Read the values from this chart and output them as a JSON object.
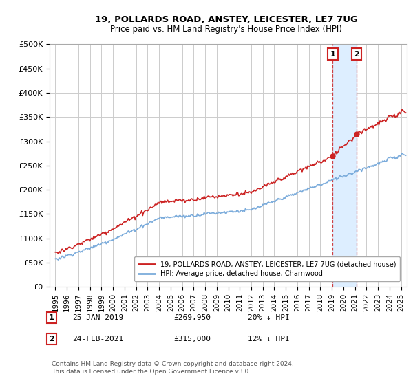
{
  "title": "19, POLLARDS ROAD, ANSTEY, LEICESTER, LE7 7UG",
  "subtitle": "Price paid vs. HM Land Registry's House Price Index (HPI)",
  "ylabel_ticks": [
    "£0",
    "£50K",
    "£100K",
    "£150K",
    "£200K",
    "£250K",
    "£300K",
    "£350K",
    "£400K",
    "£450K",
    "£500K"
  ],
  "ytick_values": [
    0,
    50000,
    100000,
    150000,
    200000,
    250000,
    300000,
    350000,
    400000,
    450000,
    500000
  ],
  "xlim_start": 1994.5,
  "xlim_end": 2025.5,
  "ylim": [
    0,
    500000
  ],
  "hpi_color": "#7aabdb",
  "price_color": "#cc2222",
  "marker1_date": 2019.07,
  "marker1_price": 269950,
  "marker1_label": "25-JAN-2019",
  "marker1_note": "£269,950",
  "marker1_pct": "20% ↓ HPI",
  "marker2_date": 2021.15,
  "marker2_price": 315000,
  "marker2_label": "24-FEB-2021",
  "marker2_note": "£315,000",
  "marker2_pct": "12% ↓ HPI",
  "legend_line1": "19, POLLARDS ROAD, ANSTEY, LEICESTER, LE7 7UG (detached house)",
  "legend_line2": "HPI: Average price, detached house, Charnwood",
  "footer": "Contains HM Land Registry data © Crown copyright and database right 2024.\nThis data is licensed under the Open Government Licence v3.0.",
  "background_color": "#ffffff",
  "grid_color": "#cccccc",
  "shaded_region_color": "#ddeeff"
}
